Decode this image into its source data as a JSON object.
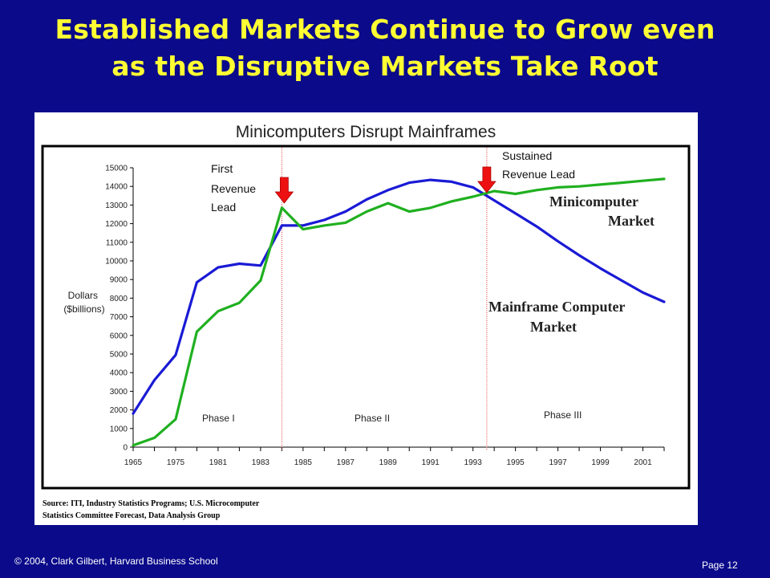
{
  "slide": {
    "title_line1": "Established Markets Continue to Grow even",
    "title_line2": "as the Disruptive Markets Take Root",
    "source_line1": "Source: ITI, Industry Statistics Programs; U.S. Microcomputer",
    "source_line2": "Statistics Committee Forecast, Data Analysis Group",
    "copyright": "© 2004,  Clark Gilbert, Harvard Business School",
    "page": "Page  12"
  },
  "chart_data": {
    "type": "line",
    "title": "Minicomputers Disrupt Mainframes",
    "ylabel_line1": "Dollars",
    "ylabel_line2": "($billions)",
    "ylim": [
      0,
      15000
    ],
    "yticks": [
      0,
      1000,
      2000,
      3000,
      4000,
      5000,
      6000,
      7000,
      8000,
      9000,
      10000,
      11000,
      12000,
      13000,
      14000,
      15000
    ],
    "x_labels": [
      "1965",
      "1975",
      "1981",
      "1983",
      "1985",
      "1987",
      "1989",
      "1991",
      "1993",
      "1995",
      "1997",
      "1999",
      "2001"
    ],
    "x_count": 26,
    "grid": false,
    "series": [
      {
        "name": "Mainframe Computer Market",
        "color": "#1a1ad6",
        "values": [
          1800,
          3600,
          4950,
          8850,
          9650,
          9850,
          9750,
          11900,
          11900,
          12200,
          12650,
          13300,
          13800,
          14200,
          14350,
          14250,
          13950,
          13250,
          12550,
          11850,
          11050,
          10300,
          9600,
          8950,
          8300,
          7800
        ]
      },
      {
        "name": "Minicomputer Market",
        "color": "#20b020",
        "values": [
          100,
          500,
          1500,
          6200,
          7300,
          7750,
          8950,
          12850,
          11700,
          11900,
          12050,
          12650,
          13100,
          12650,
          12850,
          13200,
          13450,
          13750,
          13600,
          13800,
          13950,
          14000,
          14100,
          14200,
          14300,
          14400
        ]
      }
    ],
    "annotations": [
      {
        "kind": "series-label",
        "lines": [
          "Minicomputer",
          "Market"
        ]
      },
      {
        "kind": "series-label",
        "lines": [
          "Mainframe Computer",
          "Market"
        ]
      },
      {
        "kind": "callout",
        "lines": [
          "First",
          "Revenue",
          "Lead"
        ]
      },
      {
        "kind": "callout",
        "lines": [
          "Sustained",
          "Revenue Lead"
        ]
      },
      {
        "kind": "phase",
        "text": "Phase I"
      },
      {
        "kind": "phase",
        "text": "Phase II"
      },
      {
        "kind": "phase",
        "text": "Phase III"
      }
    ],
    "divider_index": [
      7.0,
      16.65
    ],
    "arrow_color": "#ee1111"
  }
}
